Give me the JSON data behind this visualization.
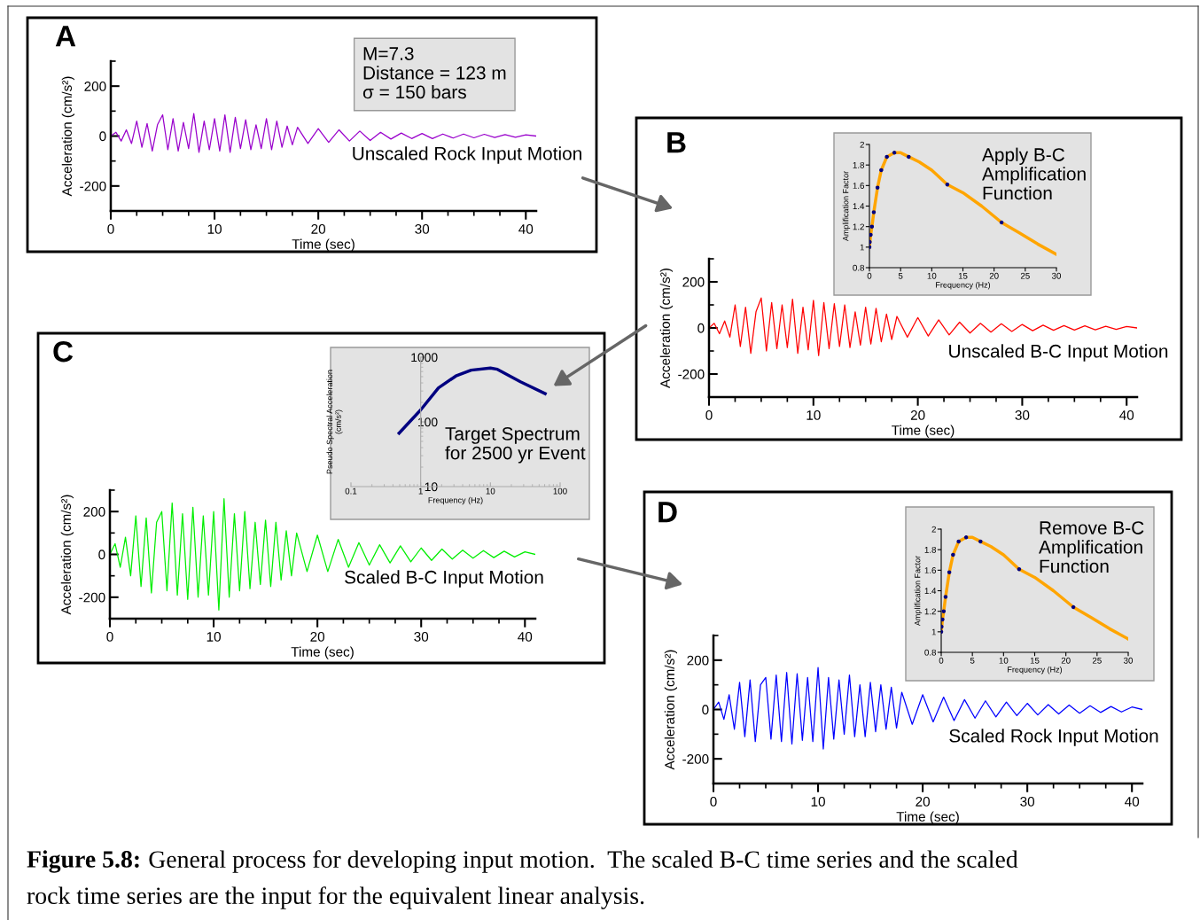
{
  "chart_data": [
    {
      "type": "line",
      "title": "A",
      "xlabel": "Time (sec)",
      "ylabel": "Acceleration (cm/s²)",
      "xlim": [
        0,
        41
      ],
      "ylim": [
        -300,
        300
      ],
      "xticks": [
        0,
        10,
        20,
        30,
        40
      ],
      "yticks": [
        -200,
        0,
        200
      ],
      "grid": false,
      "x": [
        0,
        0.5,
        1,
        1.5,
        2,
        2.5,
        3,
        3.5,
        4,
        4.5,
        5,
        5.5,
        6,
        6.5,
        7,
        7.5,
        8,
        8.5,
        9,
        9.5,
        10,
        10.5,
        11,
        11.5,
        12,
        12.5,
        13,
        13.5,
        14,
        14.5,
        15,
        15.5,
        16,
        16.5,
        17,
        17.5,
        18,
        19,
        20,
        21,
        22,
        23,
        24,
        25,
        26,
        27,
        28,
        29,
        30,
        31,
        32,
        33,
        34,
        35,
        36,
        37,
        38,
        39,
        40,
        41
      ],
      "series": [
        {
          "color": "#9900cc",
          "values": [
            0,
            15,
            -20,
            25,
            -30,
            60,
            -45,
            50,
            -60,
            45,
            85,
            -55,
            70,
            -60,
            55,
            -50,
            90,
            -65,
            60,
            -55,
            70,
            -60,
            85,
            -65,
            75,
            -50,
            65,
            -55,
            45,
            -50,
            70,
            -55,
            60,
            -45,
            40,
            -35,
            35,
            -30,
            30,
            -25,
            25,
            -20,
            20,
            -18,
            15,
            -12,
            12,
            -10,
            10,
            -10,
            8,
            -8,
            8,
            -7,
            7,
            -6,
            6,
            -5,
            5,
            0
          ]
        }
      ],
      "annotations": [
        "Unscaled Rock Input Motion",
        "M=7.3\nDistance = 123 m\nσ = 150 bars"
      ]
    },
    {
      "type": "line",
      "title": "B",
      "xlabel": "Time (sec)",
      "ylabel": "Acceleration (cm/s²)",
      "xlim": [
        0,
        41
      ],
      "ylim": [
        -300,
        300
      ],
      "xticks": [
        0,
        10,
        20,
        30,
        40
      ],
      "yticks": [
        -200,
        0,
        200
      ],
      "grid": false,
      "x": [
        0,
        0.5,
        1,
        1.5,
        2,
        2.5,
        3,
        3.5,
        4,
        4.5,
        5,
        5.5,
        6,
        6.5,
        7,
        7.5,
        8,
        8.5,
        9,
        9.5,
        10,
        10.5,
        11,
        11.5,
        12,
        12.5,
        13,
        13.5,
        14,
        14.5,
        15,
        15.5,
        16,
        16.5,
        17,
        17.5,
        18,
        19,
        20,
        21,
        22,
        23,
        24,
        25,
        26,
        27,
        28,
        29,
        30,
        31,
        32,
        33,
        34,
        35,
        36,
        37,
        38,
        39,
        40,
        41
      ],
      "series": [
        {
          "color": "#ff0000",
          "values": [
            0,
            20,
            -25,
            30,
            -40,
            100,
            -80,
            90,
            -110,
            70,
            130,
            -100,
            110,
            -90,
            100,
            -85,
            125,
            -110,
            90,
            -95,
            120,
            -120,
            110,
            -90,
            105,
            -80,
            100,
            -85,
            70,
            -75,
            90,
            -70,
            85,
            -60,
            60,
            -50,
            50,
            -40,
            45,
            -35,
            35,
            -30,
            25,
            -22,
            20,
            -18,
            18,
            -15,
            15,
            -12,
            12,
            -10,
            10,
            -9,
            9,
            -8,
            7,
            -6,
            6,
            0
          ]
        }
      ],
      "annotations": [
        "Unscaled B-C Input Motion"
      ]
    },
    {
      "type": "line",
      "xlabel": "Frequency (Hz)",
      "ylabel": "Amplification Factor",
      "xlim": [
        0,
        30
      ],
      "ylim": [
        0.8,
        2
      ],
      "xticks": [
        0,
        5,
        10,
        15,
        20,
        25,
        30
      ],
      "yticks": [
        0.8,
        1,
        1.2,
        1.4,
        1.6,
        1.8,
        2
      ],
      "grid": false,
      "series": [
        {
          "color": "#ffa500",
          "x": [
            0,
            0.2,
            0.4,
            0.7,
            1.3,
            1.9,
            2.8,
            4,
            5,
            6.3,
            8,
            10,
            12.5,
            15,
            18,
            21.2,
            24,
            27,
            30
          ],
          "values": [
            1.0,
            1.12,
            1.2,
            1.34,
            1.58,
            1.75,
            1.88,
            1.92,
            1.92,
            1.88,
            1.83,
            1.75,
            1.61,
            1.53,
            1.4,
            1.24,
            1.14,
            1.03,
            0.93
          ]
        },
        {
          "type": "scatter",
          "marker": "circle",
          "color": "#000080",
          "x": [
            0,
            0.05,
            0.2,
            0.4,
            0.7,
            1.3,
            1.9,
            2.8,
            4,
            6.3,
            12.5,
            21.2
          ],
          "values": [
            1.0,
            1.05,
            1.12,
            1.2,
            1.34,
            1.58,
            1.75,
            1.88,
            1.92,
            1.88,
            1.61,
            1.24
          ]
        }
      ],
      "annotations": [
        "Apply B-C\nAmplification\nFunction"
      ]
    },
    {
      "type": "line",
      "title": "C",
      "xlabel": "Time (sec)",
      "ylabel": "Acceleration (cm/s²)",
      "xlim": [
        0,
        41
      ],
      "ylim": [
        -300,
        300
      ],
      "xticks": [
        0,
        10,
        20,
        30,
        40
      ],
      "yticks": [
        -200,
        0,
        200
      ],
      "grid": false,
      "x": [
        0,
        0.5,
        1,
        1.5,
        2,
        2.5,
        3,
        3.5,
        4,
        4.5,
        5,
        5.5,
        6,
        6.5,
        7,
        7.5,
        8,
        8.5,
        9,
        9.5,
        10,
        10.5,
        11,
        11.5,
        12,
        12.5,
        13,
        13.5,
        14,
        14.5,
        15,
        15.5,
        16,
        16.5,
        17,
        17.5,
        18,
        19,
        20,
        21,
        22,
        23,
        24,
        25,
        26,
        27,
        28,
        29,
        30,
        31,
        32,
        33,
        34,
        35,
        36,
        37,
        38,
        39,
        40,
        41
      ],
      "series": [
        {
          "color": "#00ee00",
          "values": [
            0,
            50,
            -60,
            80,
            -100,
            180,
            -150,
            170,
            -180,
            150,
            200,
            -170,
            240,
            -190,
            190,
            -210,
            220,
            -200,
            180,
            -190,
            200,
            -260,
            260,
            -200,
            190,
            -170,
            200,
            -160,
            150,
            -140,
            160,
            -150,
            150,
            -120,
            110,
            -100,
            100,
            -80,
            90,
            -80,
            70,
            -60,
            55,
            -50,
            45,
            -40,
            40,
            -35,
            30,
            -28,
            25,
            -22,
            20,
            -18,
            18,
            -15,
            15,
            -12,
            12,
            0
          ]
        }
      ],
      "annotations": [
        "Scaled B-C Input Motion"
      ]
    },
    {
      "type": "line",
      "log": "xy",
      "xlabel": "Frequency (Hz)",
      "ylabel": "Pseudo Spectral Acceleration\n(cm/s²)",
      "xlim": [
        0.1,
        100
      ],
      "ylim": [
        10,
        1000
      ],
      "xticks": [
        0.1,
        1,
        10,
        100
      ],
      "yticks": [
        10,
        100,
        1000
      ],
      "grid": false,
      "series": [
        {
          "color": "#000080",
          "x": [
            0.49,
            1,
            1.8,
            3.2,
            5.3,
            10,
            12.6,
            27,
            61
          ],
          "values": [
            67,
            153,
            336,
            512,
            630,
            680,
            650,
            416,
            273
          ]
        }
      ],
      "annotations": [
        "Target Spectrum\nfor 2500 yr Event"
      ]
    },
    {
      "type": "line",
      "title": "D",
      "xlabel": "Time (sec)",
      "ylabel": "Acceleration (cm/s²)",
      "xlim": [
        0,
        41
      ],
      "ylim": [
        -300,
        300
      ],
      "xticks": [
        0,
        10,
        20,
        30,
        40
      ],
      "yticks": [
        -200,
        0,
        200
      ],
      "grid": false,
      "x": [
        0,
        0.5,
        1,
        1.5,
        2,
        2.5,
        3,
        3.5,
        4,
        4.5,
        5,
        5.5,
        6,
        6.5,
        7,
        7.5,
        8,
        8.5,
        9,
        9.5,
        10,
        10.5,
        11,
        11.5,
        12,
        12.5,
        13,
        13.5,
        14,
        14.5,
        15,
        15.5,
        16,
        16.5,
        17,
        17.5,
        18,
        19,
        20,
        21,
        22,
        23,
        24,
        25,
        26,
        27,
        28,
        29,
        30,
        31,
        32,
        33,
        34,
        35,
        36,
        37,
        38,
        39,
        40,
        41
      ],
      "series": [
        {
          "color": "#0000ff",
          "values": [
            0,
            30,
            -40,
            60,
            -80,
            110,
            -110,
            120,
            -130,
            100,
            130,
            -120,
            140,
            -130,
            150,
            -140,
            145,
            -125,
            130,
            -130,
            170,
            -160,
            130,
            -120,
            120,
            -100,
            140,
            -110,
            100,
            -110,
            110,
            -90,
            100,
            -80,
            90,
            -75,
            70,
            -60,
            60,
            -50,
            50,
            -45,
            40,
            -35,
            35,
            -30,
            30,
            -25,
            25,
            -22,
            20,
            -18,
            18,
            -15,
            15,
            -12,
            12,
            -10,
            10,
            0
          ]
        }
      ],
      "annotations": [
        "Scaled Rock Input Motion"
      ]
    },
    {
      "type": "line",
      "xlabel": "Frequency (Hz)",
      "ylabel": "Amplification Factor",
      "xlim": [
        0,
        30
      ],
      "ylim": [
        0.8,
        2
      ],
      "xticks": [
        0,
        5,
        10,
        15,
        20,
        25,
        30
      ],
      "yticks": [
        0.8,
        1,
        1.2,
        1.4,
        1.6,
        1.8,
        2
      ],
      "grid": false,
      "series": [
        {
          "color": "#ffa500",
          "x": [
            0,
            0.2,
            0.4,
            0.7,
            1.3,
            1.9,
            2.8,
            4,
            5,
            6.3,
            8,
            10,
            12.5,
            15,
            18,
            21.2,
            24,
            27,
            30
          ],
          "values": [
            1.0,
            1.12,
            1.2,
            1.34,
            1.58,
            1.75,
            1.88,
            1.92,
            1.92,
            1.88,
            1.83,
            1.75,
            1.61,
            1.53,
            1.4,
            1.24,
            1.14,
            1.03,
            0.93
          ]
        },
        {
          "type": "scatter",
          "marker": "circle",
          "color": "#000080",
          "x": [
            0,
            0.05,
            0.2,
            0.4,
            0.7,
            1.3,
            1.9,
            2.8,
            4,
            6.3,
            12.5,
            21.2
          ],
          "values": [
            1.0,
            1.05,
            1.12,
            1.2,
            1.34,
            1.58,
            1.75,
            1.88,
            1.92,
            1.88,
            1.61,
            1.24
          ]
        }
      ],
      "annotations": [
        "Remove B-C\nAmplification\nFunction"
      ]
    },
    {
      "type": "other",
      "annotations": [
        "Figure 5.8:",
        "General process for developing input motion.  The scaled B-C time series and the scaled",
        "rock time series are the input for the equivalent linear analysis."
      ]
    }
  ]
}
